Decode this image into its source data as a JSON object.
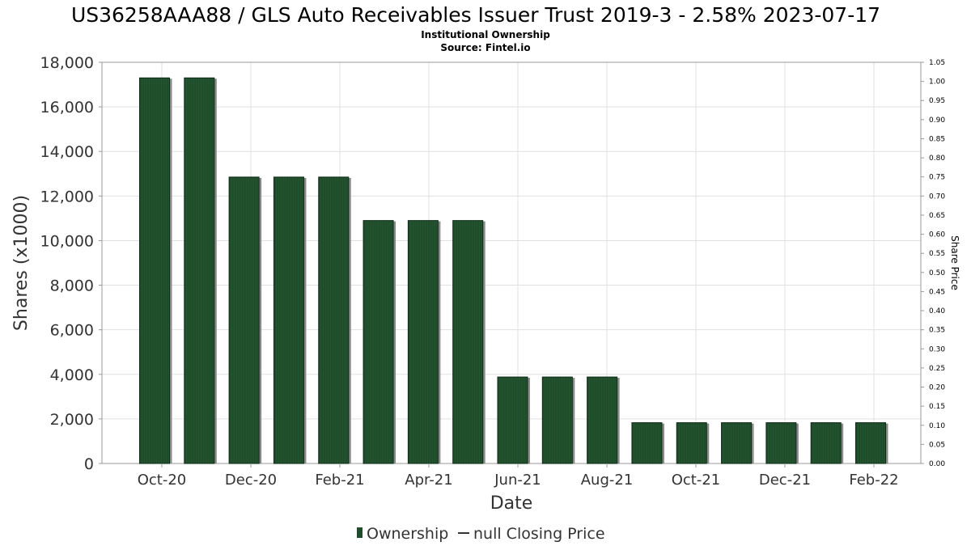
{
  "chart_data": {
    "type": "bar",
    "title": "US36258AAA88 / GLS Auto Receivables Issuer Trust 2019-3 - 2.58% 2023-07-17",
    "subtitle_lines": [
      "Institutional Ownership",
      "Source: Fintel.io"
    ],
    "xlabel": "Date",
    "ylabel": "Shares (x1000)",
    "y2label": "Share Price",
    "ylim": [
      0,
      18000
    ],
    "y_ticks": [
      "0",
      "2,000",
      "4,000",
      "6,000",
      "8,000",
      "10,000",
      "12,000",
      "14,000",
      "16,000",
      "18,000"
    ],
    "y2lim": [
      0,
      1.05
    ],
    "y2_ticks": [
      "0.00",
      "0.05",
      "0.10",
      "0.15",
      "0.20",
      "0.25",
      "0.30",
      "0.35",
      "0.40",
      "0.45",
      "0.50",
      "0.55",
      "0.60",
      "0.65",
      "0.70",
      "0.75",
      "0.80",
      "0.85",
      "0.90",
      "0.95",
      "1.00",
      "1.05"
    ],
    "x_tick_labels": [
      "Oct-20",
      "Dec-20",
      "Feb-21",
      "Apr-21",
      "Jun-21",
      "Aug-21",
      "Oct-21",
      "Dec-21",
      "Feb-22"
    ],
    "grid": true,
    "legend_position": "bottom",
    "series": [
      {
        "name": "Ownership",
        "color": "#1f4d2b",
        "values": [
          17300,
          17300,
          12850,
          12850,
          12850,
          10900,
          10900,
          10900,
          3880,
          3880,
          3880,
          1830,
          1830,
          1830,
          1830,
          1830,
          1830
        ]
      },
      {
        "name": "null Closing Price",
        "color": "#333333",
        "values": []
      }
    ]
  }
}
